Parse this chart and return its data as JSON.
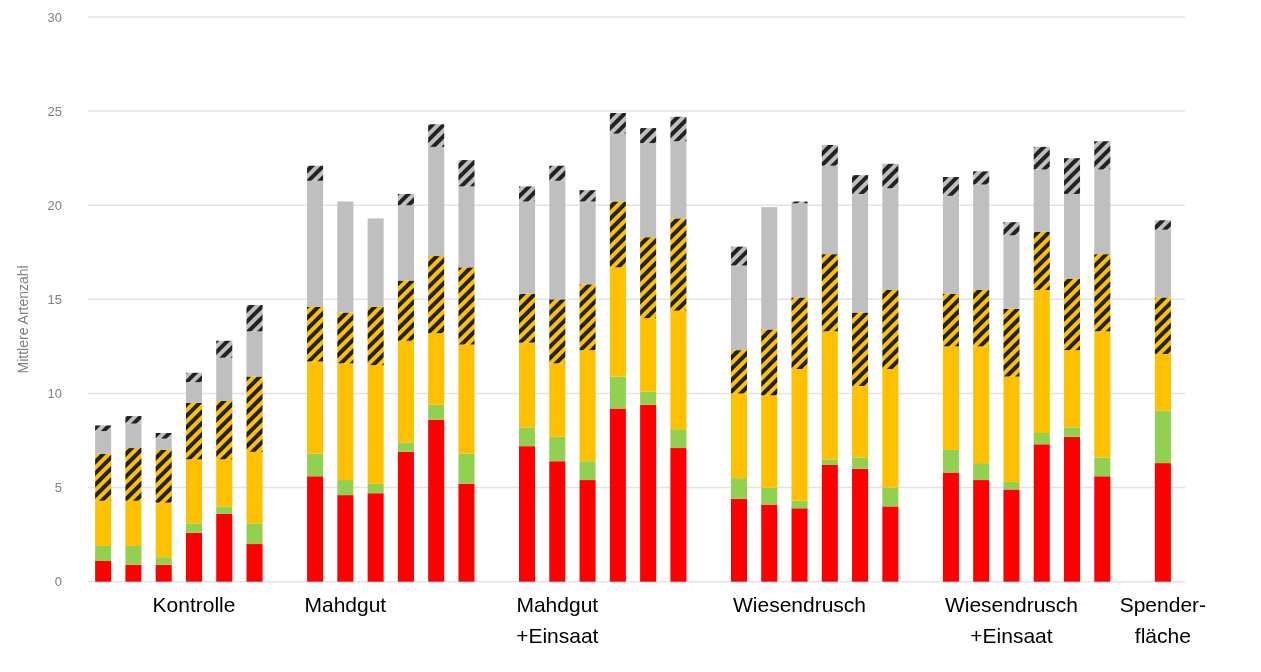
{
  "chart_data": {
    "type": "bar",
    "stacked": true,
    "ylabel": "Mittlere Artenzahl",
    "categories": [
      null,
      null,
      null,
      "Kontrolle",
      null,
      null,
      null,
      null,
      "Mahdgut",
      null,
      null,
      null,
      null,
      null,
      null,
      "Mahdgut\n+Einsaat",
      null,
      null,
      null,
      null,
      null,
      null,
      null,
      "Wiesendrusch",
      null,
      null,
      null,
      null,
      null,
      null,
      "Wiesendrusch\n+Einsaat",
      null,
      null,
      null,
      null,
      "Spender-\nfläche"
    ],
    "series": [
      {
        "color": "#ff0000",
        "values": [
          1.1,
          0.9,
          0.9,
          2.6,
          3.6,
          2.0,
          null,
          5.6,
          4.6,
          4.7,
          6.9,
          8.6,
          5.2,
          null,
          7.2,
          6.4,
          5.4,
          9.2,
          9.4,
          7.1,
          null,
          4.4,
          4.1,
          3.9,
          6.2,
          6.0,
          4.0,
          null,
          5.8,
          5.4,
          4.9,
          7.3,
          7.7,
          5.6,
          null,
          6.3
        ]
      },
      {
        "color": "#92d050",
        "values": [
          0.8,
          1.0,
          0.4,
          0.5,
          0.4,
          1.1,
          null,
          1.2,
          0.8,
          0.5,
          0.5,
          0.8,
          1.6,
          null,
          1.0,
          1.3,
          1.0,
          1.7,
          0.7,
          1.0,
          null,
          1.1,
          0.9,
          0.4,
          0.3,
          0.6,
          1.0,
          null,
          1.2,
          0.9,
          0.4,
          0.6,
          0.5,
          1.0,
          null,
          2.8
        ]
      },
      {
        "color": "#ffc000",
        "values": [
          2.4,
          2.4,
          2.9,
          3.4,
          2.5,
          3.8,
          null,
          4.9,
          6.2,
          6.3,
          5.4,
          3.8,
          5.8,
          null,
          4.5,
          3.9,
          5.9,
          5.8,
          3.9,
          6.3,
          null,
          4.5,
          4.9,
          7.0,
          6.8,
          3.8,
          6.3,
          null,
          5.5,
          6.2,
          5.6,
          7.6,
          4.1,
          6.7,
          null,
          3.0
        ]
      },
      {
        "color": "#ffc000",
        "values": [
          2.5,
          2.8,
          2.8,
          3.0,
          3.1,
          4.0,
          null,
          2.9,
          2.7,
          3.1,
          3.2,
          4.1,
          4.1,
          null,
          2.6,
          3.4,
          3.5,
          3.5,
          4.3,
          4.9,
          null,
          2.3,
          3.5,
          3.8,
          4.1,
          3.9,
          4.2,
          null,
          2.8,
          3.0,
          3.6,
          3.1,
          3.8,
          4.1,
          null,
          3.0
        ]
      },
      {
        "color": "#bfbfbf",
        "values": [
          1.2,
          1.3,
          0.6,
          1.1,
          2.3,
          2.4,
          null,
          6.7,
          5.9,
          4.7,
          4.0,
          5.8,
          4.3,
          null,
          4.9,
          6.3,
          4.4,
          3.6,
          5.0,
          4.1,
          null,
          4.5,
          6.5,
          5.0,
          4.7,
          6.3,
          5.4,
          null,
          5.2,
          5.6,
          3.9,
          3.3,
          4.5,
          4.5,
          null,
          3.6
        ]
      },
      {
        "color": "#bfbfbf",
        "values": [
          0.3,
          0.4,
          0.3,
          0.5,
          0.9,
          1.4,
          null,
          0.8,
          0,
          0,
          0.6,
          1.2,
          1.4,
          null,
          0.8,
          0.8,
          0.6,
          1.1,
          0.8,
          1.3,
          null,
          1.0,
          0,
          0.1,
          1.1,
          1.0,
          1.3,
          null,
          1.0,
          0.7,
          0.7,
          1.2,
          1.9,
          1.5,
          null,
          0.5
        ]
      }
    ],
    "ylim": [
      0,
      30
    ],
    "yticks": [
      0,
      5,
      10,
      15,
      20,
      25,
      30
    ],
    "grid": "y"
  }
}
